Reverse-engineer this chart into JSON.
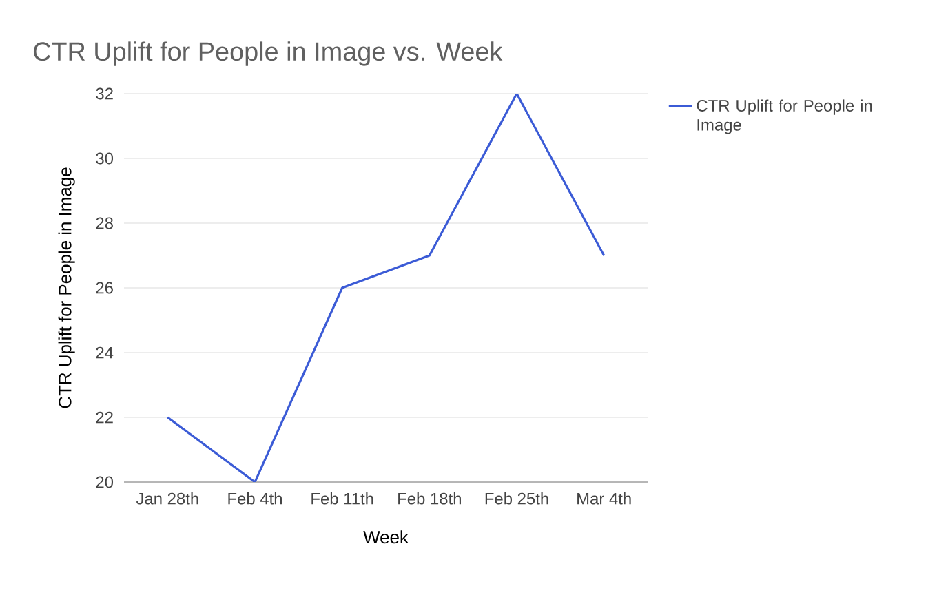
{
  "chart_data": {
    "type": "line",
    "title": "CTR Uplift for People in Image vs. Week",
    "xlabel": "Week",
    "ylabel": "CTR Uplift for People in Image",
    "categories": [
      "Jan 28th",
      "Feb 4th",
      "Feb 11th",
      "Feb 18th",
      "Feb 25th",
      "Mar 4th"
    ],
    "series": [
      {
        "name": "CTR Uplift for People in Image",
        "color": "#3b5bd6",
        "values": [
          22,
          20,
          26,
          27,
          32,
          27
        ]
      }
    ],
    "ylim": [
      20,
      32
    ],
    "yticks": [
      20,
      22,
      24,
      26,
      28,
      30,
      32
    ],
    "grid": "y",
    "legend": "top right",
    "marker": "none",
    "line_style": "solid"
  }
}
